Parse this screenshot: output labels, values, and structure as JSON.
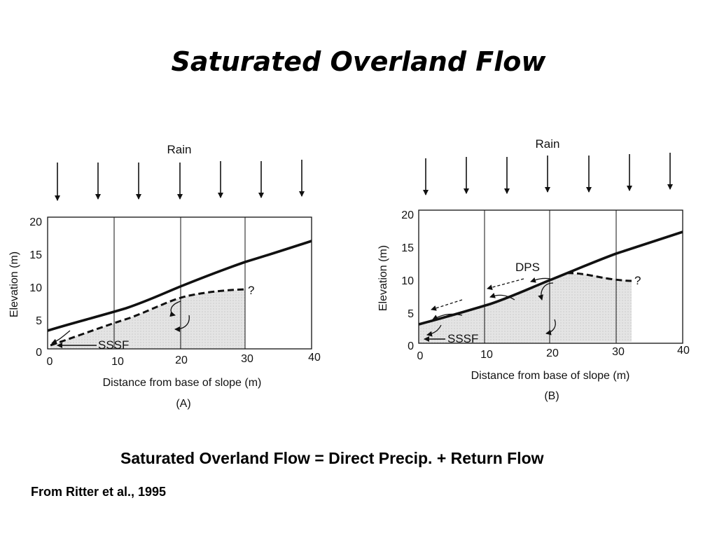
{
  "slide": {
    "title": "Saturated Overland Flow",
    "equation": "Saturated Overland Flow = Direct Precip. + Return Flow",
    "source": "From Ritter et al., 1995"
  },
  "figure_a": {
    "rain_label": "Rain",
    "y_axis_label": "Elevation (m)",
    "x_axis_label": "Distance from base of slope (m)",
    "y_ticks": [
      "0",
      "5",
      "10",
      "15",
      "20"
    ],
    "x_ticks": [
      "0",
      "10",
      "20",
      "30",
      "40"
    ],
    "sssf_label": "SSSF",
    "question_mark": "?",
    "panel_label": "(A)"
  },
  "figure_b": {
    "rain_label": "Rain",
    "y_axis_label": "Elevation (m)",
    "x_axis_label": "Distance from base of slope (m)",
    "y_ticks": [
      "0",
      "5",
      "10",
      "15",
      "20"
    ],
    "x_ticks": [
      "0",
      "10",
      "20",
      "30",
      "40"
    ],
    "sssf_label": "SSSF",
    "dps_label": "DPS",
    "question_mark": "?",
    "panel_label": "(B)"
  },
  "colors": {
    "saturated_zone": "#e4e4e4",
    "lines": "#111111"
  }
}
